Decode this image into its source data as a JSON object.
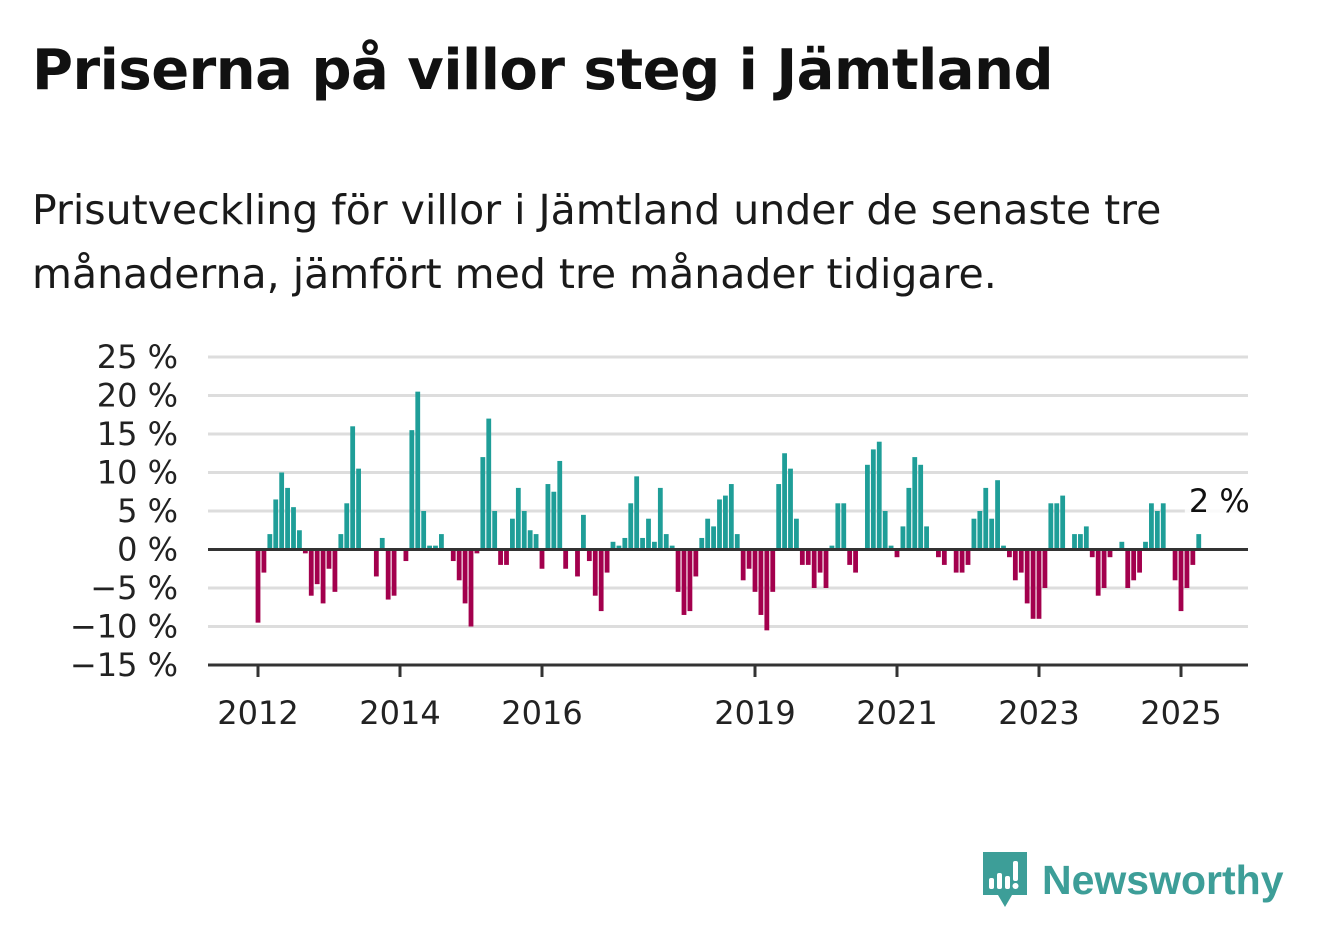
{
  "title": "Priserna på villor steg i Jämtland",
  "subtitle": "Prisutveckling för villor i Jämtland under de senaste tre månaderna, jämfört med tre månader tidigare.",
  "brand": {
    "name": "Newsworthy",
    "icon": "newsworthy-logo-icon",
    "color": "#3d9e98"
  },
  "chart_data": {
    "type": "bar",
    "title": "",
    "xlabel": "",
    "ylabel": "",
    "ylim": [
      -15,
      25
    ],
    "yticks": [
      25,
      20,
      15,
      10,
      5,
      0,
      -5,
      -10,
      -15
    ],
    "ytick_labels": [
      "25 %",
      "20 %",
      "15 %",
      "10 %",
      "5 %",
      "0 %",
      "−5 %",
      "−10 %",
      "−15 %"
    ],
    "xticks": [
      {
        "label": "2012",
        "at": "2012-01"
      },
      {
        "label": "2014",
        "at": "2014-01"
      },
      {
        "label": "2016",
        "at": "2016-01"
      },
      {
        "label": "2019",
        "at": "2019-01"
      },
      {
        "label": "2021",
        "at": "2021-01"
      },
      {
        "label": "2023",
        "at": "2023-01"
      },
      {
        "label": "2025",
        "at": "2025-01"
      }
    ],
    "grid": true,
    "colors": {
      "positive": "#1f9e98",
      "negative": "#a3004d",
      "grid": "#dddddd",
      "axis": "#333333"
    },
    "annotation": {
      "label": "2 %",
      "at": "2025-03"
    },
    "series": [
      {
        "points": [
          {
            "x": "2012-01",
            "y": -9.5
          },
          {
            "x": "2012-02",
            "y": -3
          },
          {
            "x": "2012-03",
            "y": 2
          },
          {
            "x": "2012-04",
            "y": 6.5
          },
          {
            "x": "2012-05",
            "y": 10
          },
          {
            "x": "2012-06",
            "y": 8
          },
          {
            "x": "2012-07",
            "y": 5.5
          },
          {
            "x": "2012-08",
            "y": 2.5
          },
          {
            "x": "2012-09",
            "y": -0.5
          },
          {
            "x": "2012-10",
            "y": -6
          },
          {
            "x": "2012-11",
            "y": -4.5
          },
          {
            "x": "2012-12",
            "y": -7
          },
          {
            "x": "2013-01",
            "y": -2.5
          },
          {
            "x": "2013-02",
            "y": -5.5
          },
          {
            "x": "2013-03",
            "y": 2
          },
          {
            "x": "2013-04",
            "y": 6
          },
          {
            "x": "2013-05",
            "y": 16
          },
          {
            "x": "2013-06",
            "y": 10.5
          },
          {
            "x": "2013-07",
            "y": 0
          },
          {
            "x": "2013-08",
            "y": 0
          },
          {
            "x": "2013-09",
            "y": -3.5
          },
          {
            "x": "2013-10",
            "y": 1.5
          },
          {
            "x": "2013-11",
            "y": -6.5
          },
          {
            "x": "2013-12",
            "y": -6
          },
          {
            "x": "2014-01",
            "y": 0
          },
          {
            "x": "2014-02",
            "y": -1.5
          },
          {
            "x": "2014-03",
            "y": 15.5
          },
          {
            "x": "2014-04",
            "y": 20.5
          },
          {
            "x": "2014-05",
            "y": 5
          },
          {
            "x": "2014-06",
            "y": 0.5
          },
          {
            "x": "2014-07",
            "y": 0.5
          },
          {
            "x": "2014-08",
            "y": 2
          },
          {
            "x": "2014-09",
            "y": 0
          },
          {
            "x": "2014-10",
            "y": -1.5
          },
          {
            "x": "2014-11",
            "y": -4
          },
          {
            "x": "2014-12",
            "y": -7
          },
          {
            "x": "2015-01",
            "y": -10
          },
          {
            "x": "2015-02",
            "y": -0.5
          },
          {
            "x": "2015-03",
            "y": 12
          },
          {
            "x": "2015-04",
            "y": 17
          },
          {
            "x": "2015-05",
            "y": 5
          },
          {
            "x": "2015-06",
            "y": -2
          },
          {
            "x": "2015-07",
            "y": -2
          },
          {
            "x": "2015-08",
            "y": 4
          },
          {
            "x": "2015-09",
            "y": 8
          },
          {
            "x": "2015-10",
            "y": 5
          },
          {
            "x": "2015-11",
            "y": 2.5
          },
          {
            "x": "2015-12",
            "y": 2
          },
          {
            "x": "2016-01",
            "y": -2.5
          },
          {
            "x": "2016-02",
            "y": 8.5
          },
          {
            "x": "2016-03",
            "y": 7.5
          },
          {
            "x": "2016-04",
            "y": 11.5
          },
          {
            "x": "2016-05",
            "y": -2.5
          },
          {
            "x": "2016-06",
            "y": 0
          },
          {
            "x": "2016-07",
            "y": -3.5
          },
          {
            "x": "2016-08",
            "y": 4.5
          },
          {
            "x": "2016-09",
            "y": -1.5
          },
          {
            "x": "2016-10",
            "y": -6
          },
          {
            "x": "2016-11",
            "y": -8
          },
          {
            "x": "2016-12",
            "y": -3
          },
          {
            "x": "2017-01",
            "y": 1
          },
          {
            "x": "2017-02",
            "y": 0.5
          },
          {
            "x": "2017-03",
            "y": 1.5
          },
          {
            "x": "2017-04",
            "y": 6
          },
          {
            "x": "2017-05",
            "y": 9.5
          },
          {
            "x": "2017-06",
            "y": 1.5
          },
          {
            "x": "2017-07",
            "y": 4
          },
          {
            "x": "2017-08",
            "y": 1
          },
          {
            "x": "2017-09",
            "y": 8
          },
          {
            "x": "2017-10",
            "y": 2
          },
          {
            "x": "2017-11",
            "y": 0.5
          },
          {
            "x": "2017-12",
            "y": -5.5
          },
          {
            "x": "2018-01",
            "y": -8.5
          },
          {
            "x": "2018-02",
            "y": -8
          },
          {
            "x": "2018-03",
            "y": -3.5
          },
          {
            "x": "2018-04",
            "y": 1.5
          },
          {
            "x": "2018-05",
            "y": 4
          },
          {
            "x": "2018-06",
            "y": 3
          },
          {
            "x": "2018-07",
            "y": 6.5
          },
          {
            "x": "2018-08",
            "y": 7
          },
          {
            "x": "2018-09",
            "y": 8.5
          },
          {
            "x": "2018-10",
            "y": 2
          },
          {
            "x": "2018-11",
            "y": -4
          },
          {
            "x": "2018-12",
            "y": -2.5
          },
          {
            "x": "2019-01",
            "y": -5.5
          },
          {
            "x": "2019-02",
            "y": -8.5
          },
          {
            "x": "2019-03",
            "y": -10.5
          },
          {
            "x": "2019-04",
            "y": -5.5
          },
          {
            "x": "2019-05",
            "y": 8.5
          },
          {
            "x": "2019-06",
            "y": 12.5
          },
          {
            "x": "2019-07",
            "y": 10.5
          },
          {
            "x": "2019-08",
            "y": 4
          },
          {
            "x": "2019-09",
            "y": -2
          },
          {
            "x": "2019-10",
            "y": -2
          },
          {
            "x": "2019-11",
            "y": -5
          },
          {
            "x": "2019-12",
            "y": -3
          },
          {
            "x": "2020-01",
            "y": -5
          },
          {
            "x": "2020-02",
            "y": 0.5
          },
          {
            "x": "2020-03",
            "y": 6
          },
          {
            "x": "2020-04",
            "y": 6
          },
          {
            "x": "2020-05",
            "y": -2
          },
          {
            "x": "2020-06",
            "y": -3
          },
          {
            "x": "2020-07",
            "y": 0
          },
          {
            "x": "2020-08",
            "y": 11
          },
          {
            "x": "2020-09",
            "y": 13
          },
          {
            "x": "2020-10",
            "y": 14
          },
          {
            "x": "2020-11",
            "y": 5
          },
          {
            "x": "2020-12",
            "y": 0.5
          },
          {
            "x": "2021-01",
            "y": -1
          },
          {
            "x": "2021-02",
            "y": 3
          },
          {
            "x": "2021-03",
            "y": 8
          },
          {
            "x": "2021-04",
            "y": 12
          },
          {
            "x": "2021-05",
            "y": 11
          },
          {
            "x": "2021-06",
            "y": 3
          },
          {
            "x": "2021-07",
            "y": 0
          },
          {
            "x": "2021-08",
            "y": -1
          },
          {
            "x": "2021-09",
            "y": -2
          },
          {
            "x": "2021-10",
            "y": 0
          },
          {
            "x": "2021-11",
            "y": -3
          },
          {
            "x": "2021-12",
            "y": -3
          },
          {
            "x": "2022-01",
            "y": -2
          },
          {
            "x": "2022-02",
            "y": 4
          },
          {
            "x": "2022-03",
            "y": 5
          },
          {
            "x": "2022-04",
            "y": 8
          },
          {
            "x": "2022-05",
            "y": 4
          },
          {
            "x": "2022-06",
            "y": 9
          },
          {
            "x": "2022-07",
            "y": 0.5
          },
          {
            "x": "2022-08",
            "y": -1
          },
          {
            "x": "2022-09",
            "y": -4
          },
          {
            "x": "2022-10",
            "y": -3
          },
          {
            "x": "2022-11",
            "y": -7
          },
          {
            "x": "2022-12",
            "y": -9
          },
          {
            "x": "2023-01",
            "y": -9
          },
          {
            "x": "2023-02",
            "y": -5
          },
          {
            "x": "2023-03",
            "y": 6
          },
          {
            "x": "2023-04",
            "y": 6
          },
          {
            "x": "2023-05",
            "y": 7
          },
          {
            "x": "2023-06",
            "y": 0
          },
          {
            "x": "2023-07",
            "y": 2
          },
          {
            "x": "2023-08",
            "y": 2
          },
          {
            "x": "2023-09",
            "y": 3
          },
          {
            "x": "2023-10",
            "y": -1
          },
          {
            "x": "2023-11",
            "y": -6
          },
          {
            "x": "2023-12",
            "y": -5
          },
          {
            "x": "2024-01",
            "y": -1
          },
          {
            "x": "2024-02",
            "y": 0
          },
          {
            "x": "2024-03",
            "y": 1
          },
          {
            "x": "2024-04",
            "y": -5
          },
          {
            "x": "2024-05",
            "y": -4
          },
          {
            "x": "2024-06",
            "y": -3
          },
          {
            "x": "2024-07",
            "y": 1
          },
          {
            "x": "2024-08",
            "y": 6
          },
          {
            "x": "2024-09",
            "y": 5
          },
          {
            "x": "2024-10",
            "y": 6
          },
          {
            "x": "2024-11",
            "y": 0
          },
          {
            "x": "2024-12",
            "y": -4
          },
          {
            "x": "2025-01",
            "y": -8
          },
          {
            "x": "2025-02",
            "y": -5
          },
          {
            "x": "2025-03",
            "y": -2
          },
          {
            "x": "2025-04",
            "y": 2
          }
        ]
      }
    ]
  }
}
